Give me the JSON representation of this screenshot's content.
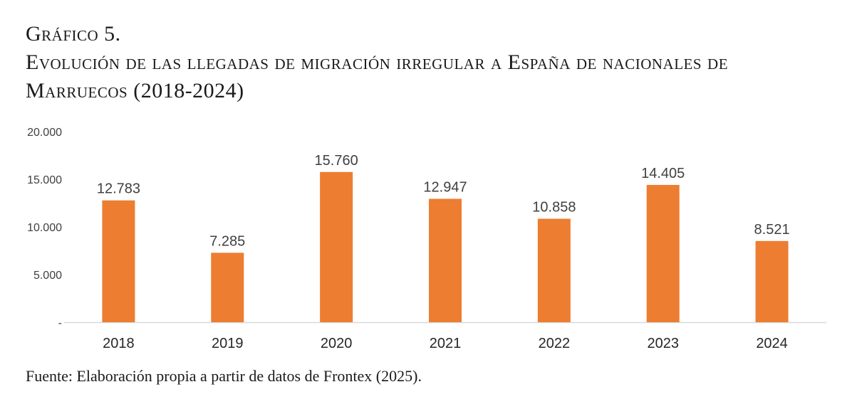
{
  "heading": {
    "label": "Gráfico 5.",
    "title_line1": "Evolución de las llegadas de migración irregular a España de nacionales de",
    "title_line2": "Marruecos (2018-2024)"
  },
  "source": "Fuente: Elaboración propia a partir de datos de Frontex (2025).",
  "colors": {
    "bar": "#ED7D31",
    "axis": "#D9D9D9",
    "text": "#404040",
    "label": "#262626"
  },
  "chart_data": {
    "type": "bar",
    "title": "Evolución de las llegadas de migración irregular a España de nacionales de Marruecos (2018-2024)",
    "categories": [
      "2018",
      "2019",
      "2020",
      "2021",
      "2022",
      "2023",
      "2024"
    ],
    "values": [
      12783,
      7285,
      15760,
      12947,
      10858,
      14405,
      8521
    ],
    "value_labels": [
      "12.783",
      "7.285",
      "15.760",
      "12.947",
      "10.858",
      "14.405",
      "8.521"
    ],
    "ylim": [
      0,
      20000
    ],
    "yticks": [
      0,
      5000,
      10000,
      15000,
      20000
    ],
    "ytick_labels": [
      "-",
      "5.000",
      "10.000",
      "15.000",
      "20.000"
    ],
    "xlabel": "",
    "ylabel": "",
    "grid": false
  }
}
